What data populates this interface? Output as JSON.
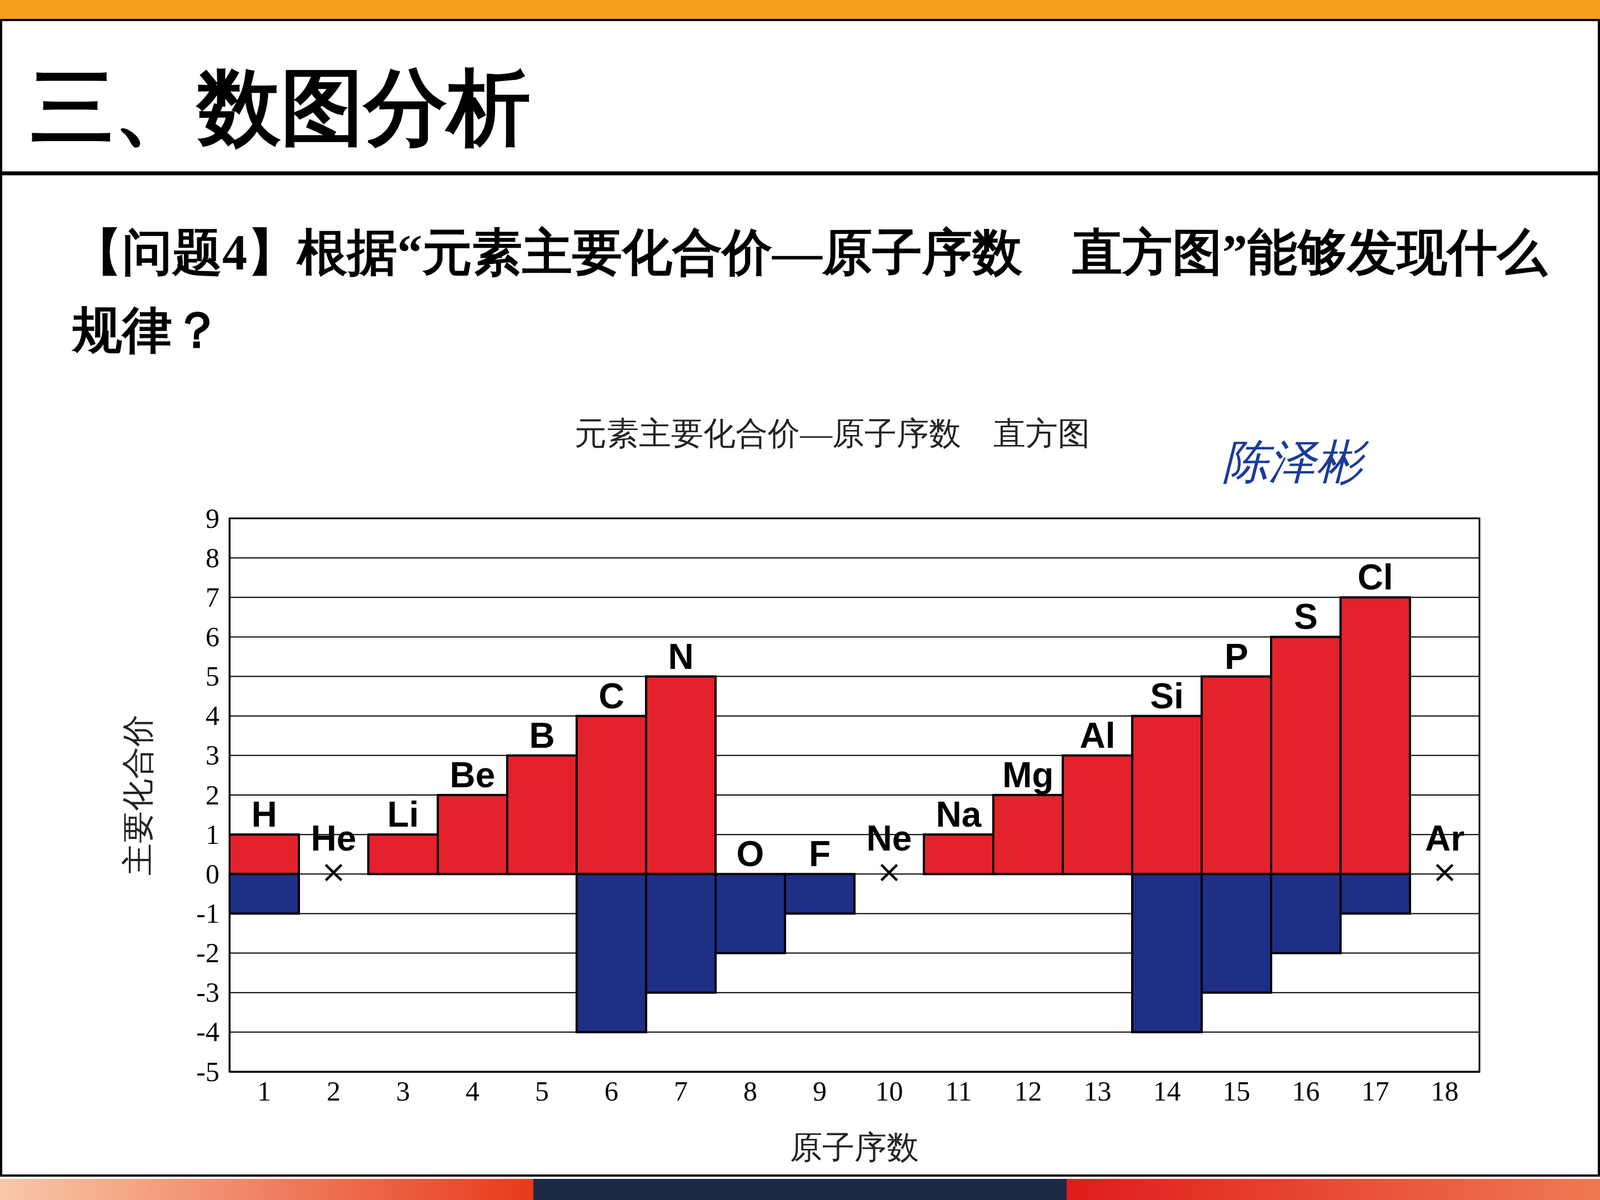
{
  "slide": {
    "heading": "三、数图分析",
    "question": "【问题4】根据“元素主要化合价—原子序数　直方图”能够发现什么规律？"
  },
  "chart_data": {
    "type": "bar",
    "title": "元素主要化合价—原子序数　直方图",
    "x_label": "原子序数",
    "y_label": "主要化合价",
    "annotations": [
      "陈泽彬"
    ],
    "categories": [
      "1",
      "2",
      "3",
      "4",
      "5",
      "6",
      "7",
      "8",
      "9",
      "10",
      "11",
      "12",
      "13",
      "14",
      "15",
      "16",
      "17",
      "18"
    ],
    "elements": [
      "H",
      "He",
      "Li",
      "Be",
      "B",
      "C",
      "N",
      "O",
      "F",
      "Ne",
      "Na",
      "Mg",
      "Al",
      "Si",
      "P",
      "S",
      "Cl",
      "Ar"
    ],
    "null_mark": "×",
    "series": [
      {
        "color": "#e3222c",
        "values": [
          1,
          null,
          1,
          2,
          3,
          4,
          5,
          null,
          null,
          null,
          1,
          2,
          3,
          4,
          5,
          6,
          7,
          null
        ]
      },
      {
        "color": "#1f2f86",
        "values": [
          -1,
          null,
          null,
          null,
          null,
          -4,
          -3,
          -2,
          -1,
          null,
          null,
          null,
          null,
          -4,
          -3,
          -2,
          -1,
          null
        ]
      }
    ],
    "ylim": [
      -5,
      9
    ],
    "yticks": [
      -5,
      -4,
      -3,
      -2,
      -1,
      0,
      1,
      2,
      3,
      4,
      5,
      6,
      7,
      8,
      9
    ],
    "grid": true
  }
}
